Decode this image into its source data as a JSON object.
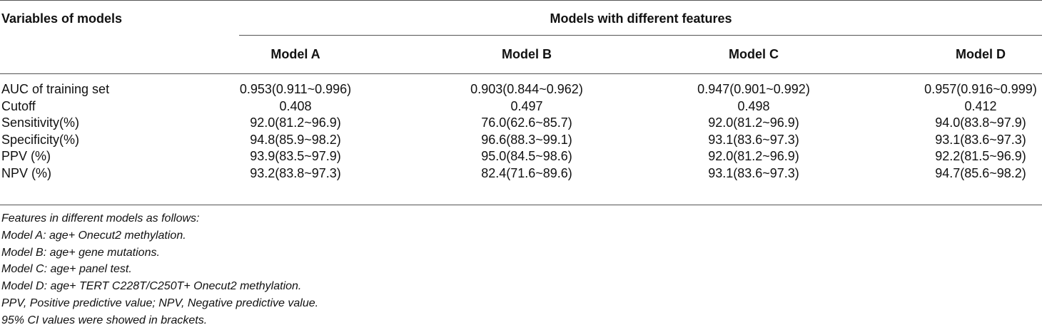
{
  "table": {
    "header": {
      "row_label": "Variables of models",
      "group": "Models with different features",
      "columns": [
        "Model A",
        "Model B",
        "Model C",
        "Model D"
      ]
    },
    "rows": [
      [
        "AUC of training set",
        "0.953(0.911~0.996)",
        "0.903(0.844~0.962)",
        "0.947(0.901~0.992)",
        "0.957(0.916~0.999)"
      ],
      [
        "Cutoff",
        "0.408",
        "0.497",
        "0.498",
        "0.412"
      ],
      [
        "Sensitivity(%)",
        "92.0(81.2~96.9)",
        "76.0(62.6~85.7)",
        "92.0(81.2~96.9)",
        "94.0(83.8~97.9)"
      ],
      [
        "Specificity(%)",
        "94.8(85.9~98.2)",
        "96.6(88.3~99.1)",
        "93.1(83.6~97.3)",
        "93.1(83.6~97.3)"
      ],
      [
        "PPV (%)",
        "93.9(83.5~97.9)",
        "95.0(84.5~98.6)",
        "92.0(81.2~96.9)",
        "92.2(81.5~96.9)"
      ],
      [
        "NPV (%)",
        "93.2(83.8~97.3)",
        "82.4(71.6~89.6)",
        "93.1(83.6~97.3)",
        "94.7(85.6~98.2)"
      ]
    ]
  },
  "notes": [
    "Features in different models as follows:",
    "Model A: age+ Onecut2 methylation.",
    "Model B: age+ gene mutations.",
    "Model C: age+ panel test.",
    "Model D: age+ TERT C228T/C250T+ Onecut2 methylation.",
    "PPV, Positive predictive value; NPV, Negative predictive value.",
    "95% CI values were showed in brackets."
  ]
}
